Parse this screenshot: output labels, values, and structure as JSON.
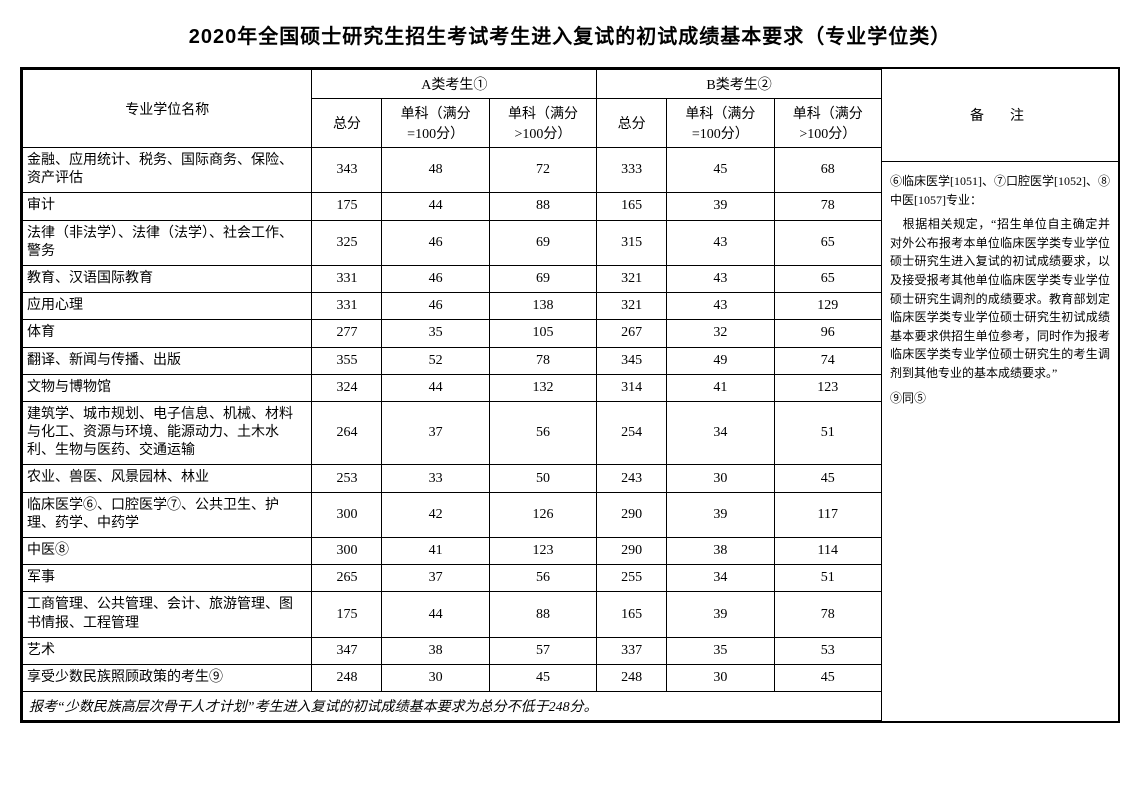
{
  "title": "2020年全国硕士研究生招生考试考生进入复试的初试成绩基本要求（专业学位类）",
  "headers": {
    "name": "专业学位名称",
    "groupA": "A类考生①",
    "groupB": "B类考生②",
    "remark": "备　注",
    "total": "总分",
    "sub100": "单科（满分=100分）",
    "subOver": "单科（满分>100分）"
  },
  "rows": [
    {
      "name": "金融、应用统计、税务、国际商务、保险、资产评估",
      "a": [
        343,
        48,
        72
      ],
      "b": [
        333,
        45,
        68
      ]
    },
    {
      "name": "审计",
      "a": [
        175,
        44,
        88
      ],
      "b": [
        165,
        39,
        78
      ]
    },
    {
      "name": "法律（非法学）、法律（法学）、社会工作、警务",
      "a": [
        325,
        46,
        69
      ],
      "b": [
        315,
        43,
        65
      ]
    },
    {
      "name": "教育、汉语国际教育",
      "a": [
        331,
        46,
        69
      ],
      "b": [
        321,
        43,
        65
      ]
    },
    {
      "name": "应用心理",
      "a": [
        331,
        46,
        138
      ],
      "b": [
        321,
        43,
        129
      ]
    },
    {
      "name": "体育",
      "a": [
        277,
        35,
        105
      ],
      "b": [
        267,
        32,
        96
      ]
    },
    {
      "name": "翻译、新闻与传播、出版",
      "a": [
        355,
        52,
        78
      ],
      "b": [
        345,
        49,
        74
      ]
    },
    {
      "name": "文物与博物馆",
      "a": [
        324,
        44,
        132
      ],
      "b": [
        314,
        41,
        123
      ]
    },
    {
      "name": "建筑学、城市规划、电子信息、机械、材料与化工、资源与环境、能源动力、土木水利、生物与医药、交通运输",
      "a": [
        264,
        37,
        56
      ],
      "b": [
        254,
        34,
        51
      ]
    },
    {
      "name": "农业、兽医、风景园林、林业",
      "a": [
        253,
        33,
        50
      ],
      "b": [
        243,
        30,
        45
      ]
    },
    {
      "name": "临床医学⑥、口腔医学⑦、公共卫生、护理、药学、中药学",
      "a": [
        300,
        42,
        126
      ],
      "b": [
        290,
        39,
        117
      ]
    },
    {
      "name": "中医⑧",
      "a": [
        300,
        41,
        123
      ],
      "b": [
        290,
        38,
        114
      ]
    },
    {
      "name": "军事",
      "a": [
        265,
        37,
        56
      ],
      "b": [
        255,
        34,
        51
      ]
    },
    {
      "name": "工商管理、公共管理、会计、旅游管理、图书情报、工程管理",
      "a": [
        175,
        44,
        88
      ],
      "b": [
        165,
        39,
        78
      ]
    },
    {
      "name": "艺术",
      "a": [
        347,
        38,
        57
      ],
      "b": [
        337,
        35,
        53
      ]
    },
    {
      "name": "享受少数民族照顾政策的考生⑨",
      "a": [
        248,
        30,
        45
      ],
      "b": [
        248,
        30,
        45
      ]
    }
  ],
  "footnote": "报考“少数民族高层次骨干人才计划”考生进入复试的初试成绩基本要求为总分不低于248分。",
  "notes": {
    "line1": "⑥临床医学[1051]、⑦口腔医学[1052]、⑧中医[1057]专业：",
    "line2": "　根据相关规定，“招生单位自主确定并对外公布报考本单位临床医学类专业学位硕士研究生进入复试的初试成绩要求，以及接受报考其他单位临床医学类专业学位硕士研究生调剂的成绩要求。教育部划定临床医学类专业学位硕士研究生初试成绩基本要求供招生单位参考，同时作为报考临床医学类专业学位硕士研究生的考生调剂到其他专业的基本成绩要求。”",
    "line3": "⑨同⑤"
  }
}
